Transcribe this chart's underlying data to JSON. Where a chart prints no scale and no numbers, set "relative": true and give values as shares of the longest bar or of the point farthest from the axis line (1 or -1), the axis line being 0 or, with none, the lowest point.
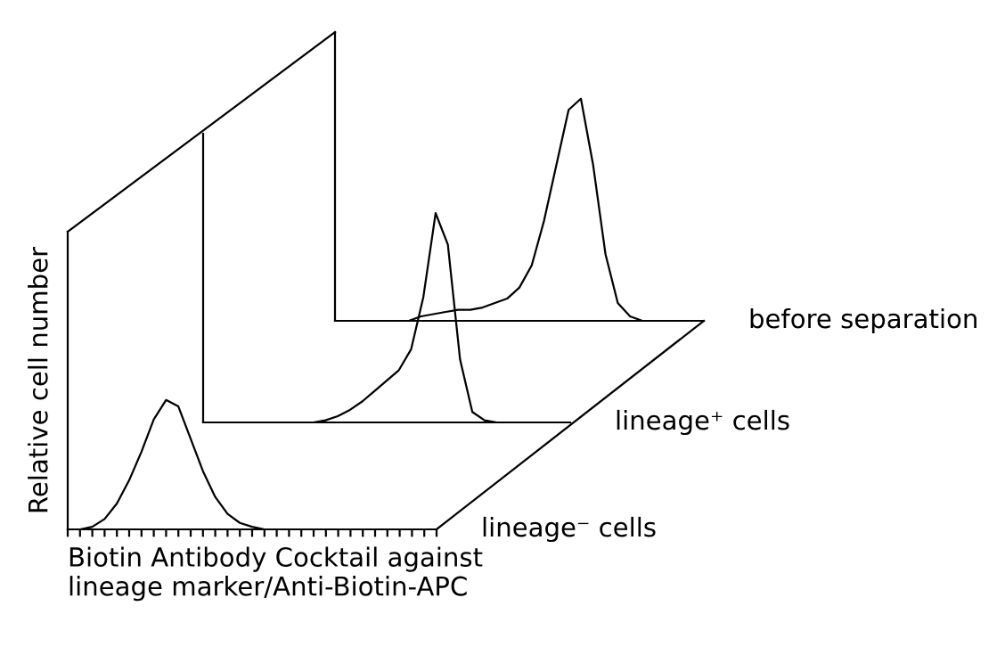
{
  "chart_data": [
    {
      "type": "line",
      "relative": true,
      "tick_labels": false,
      "categories": [
        null,
        null,
        null,
        null,
        null,
        null,
        null,
        null,
        null,
        null,
        null,
        null,
        null,
        null,
        null,
        null,
        null,
        null,
        null,
        null,
        null,
        null,
        null,
        null,
        null,
        null,
        null,
        null,
        null,
        null,
        null
      ],
      "series": [
        {
          "name": "before separation",
          "color": "#000000",
          "values": [
            0,
            0,
            0,
            0,
            0,
            0,
            0,
            0.02,
            0.03,
            0.04,
            0.05,
            0.05,
            0.06,
            0.08,
            0.1,
            0.15,
            0.25,
            0.45,
            0.7,
            0.95,
            1,
            0.7,
            0.3,
            0.08,
            0.02,
            0,
            0,
            0,
            0,
            0,
            0
          ]
        }
      ]
    },
    {
      "type": "line",
      "relative": true,
      "tick_labels": false,
      "categories": [
        null,
        null,
        null,
        null,
        null,
        null,
        null,
        null,
        null,
        null,
        null,
        null,
        null,
        null,
        null,
        null,
        null,
        null,
        null,
        null,
        null,
        null,
        null,
        null,
        null,
        null,
        null,
        null,
        null,
        null,
        null
      ],
      "series": [
        {
          "name": "lineage⁺ cells",
          "color": "#000000",
          "values": [
            0,
            0,
            0,
            0,
            0,
            0,
            0,
            0,
            0,
            0,
            0.01,
            0.03,
            0.06,
            0.1,
            0.15,
            0.2,
            0.25,
            0.35,
            0.6,
            1,
            0.85,
            0.3,
            0.05,
            0.01,
            0,
            0,
            0,
            0,
            0,
            0,
            0
          ]
        }
      ]
    },
    {
      "type": "line",
      "relative": true,
      "tick_labels": false,
      "ylabel": "Relative cell number",
      "xlabel": "Biotin Antibody Cocktail against\nlineage marker/Anti-Biotin-APC",
      "categories": [
        null,
        null,
        null,
        null,
        null,
        null,
        null,
        null,
        null,
        null,
        null,
        null,
        null,
        null,
        null,
        null,
        null,
        null,
        null,
        null,
        null,
        null,
        null,
        null,
        null,
        null,
        null,
        null,
        null,
        null,
        null
      ],
      "series": [
        {
          "name": "lineage⁻ cells",
          "color": "#000000",
          "values": [
            0,
            0,
            0.02,
            0.08,
            0.2,
            0.38,
            0.6,
            0.85,
            1,
            0.95,
            0.7,
            0.45,
            0.25,
            0.12,
            0.05,
            0.02,
            0,
            0,
            0,
            0,
            0,
            0,
            0,
            0,
            0,
            0,
            0,
            0,
            0,
            0,
            0
          ]
        }
      ]
    }
  ]
}
